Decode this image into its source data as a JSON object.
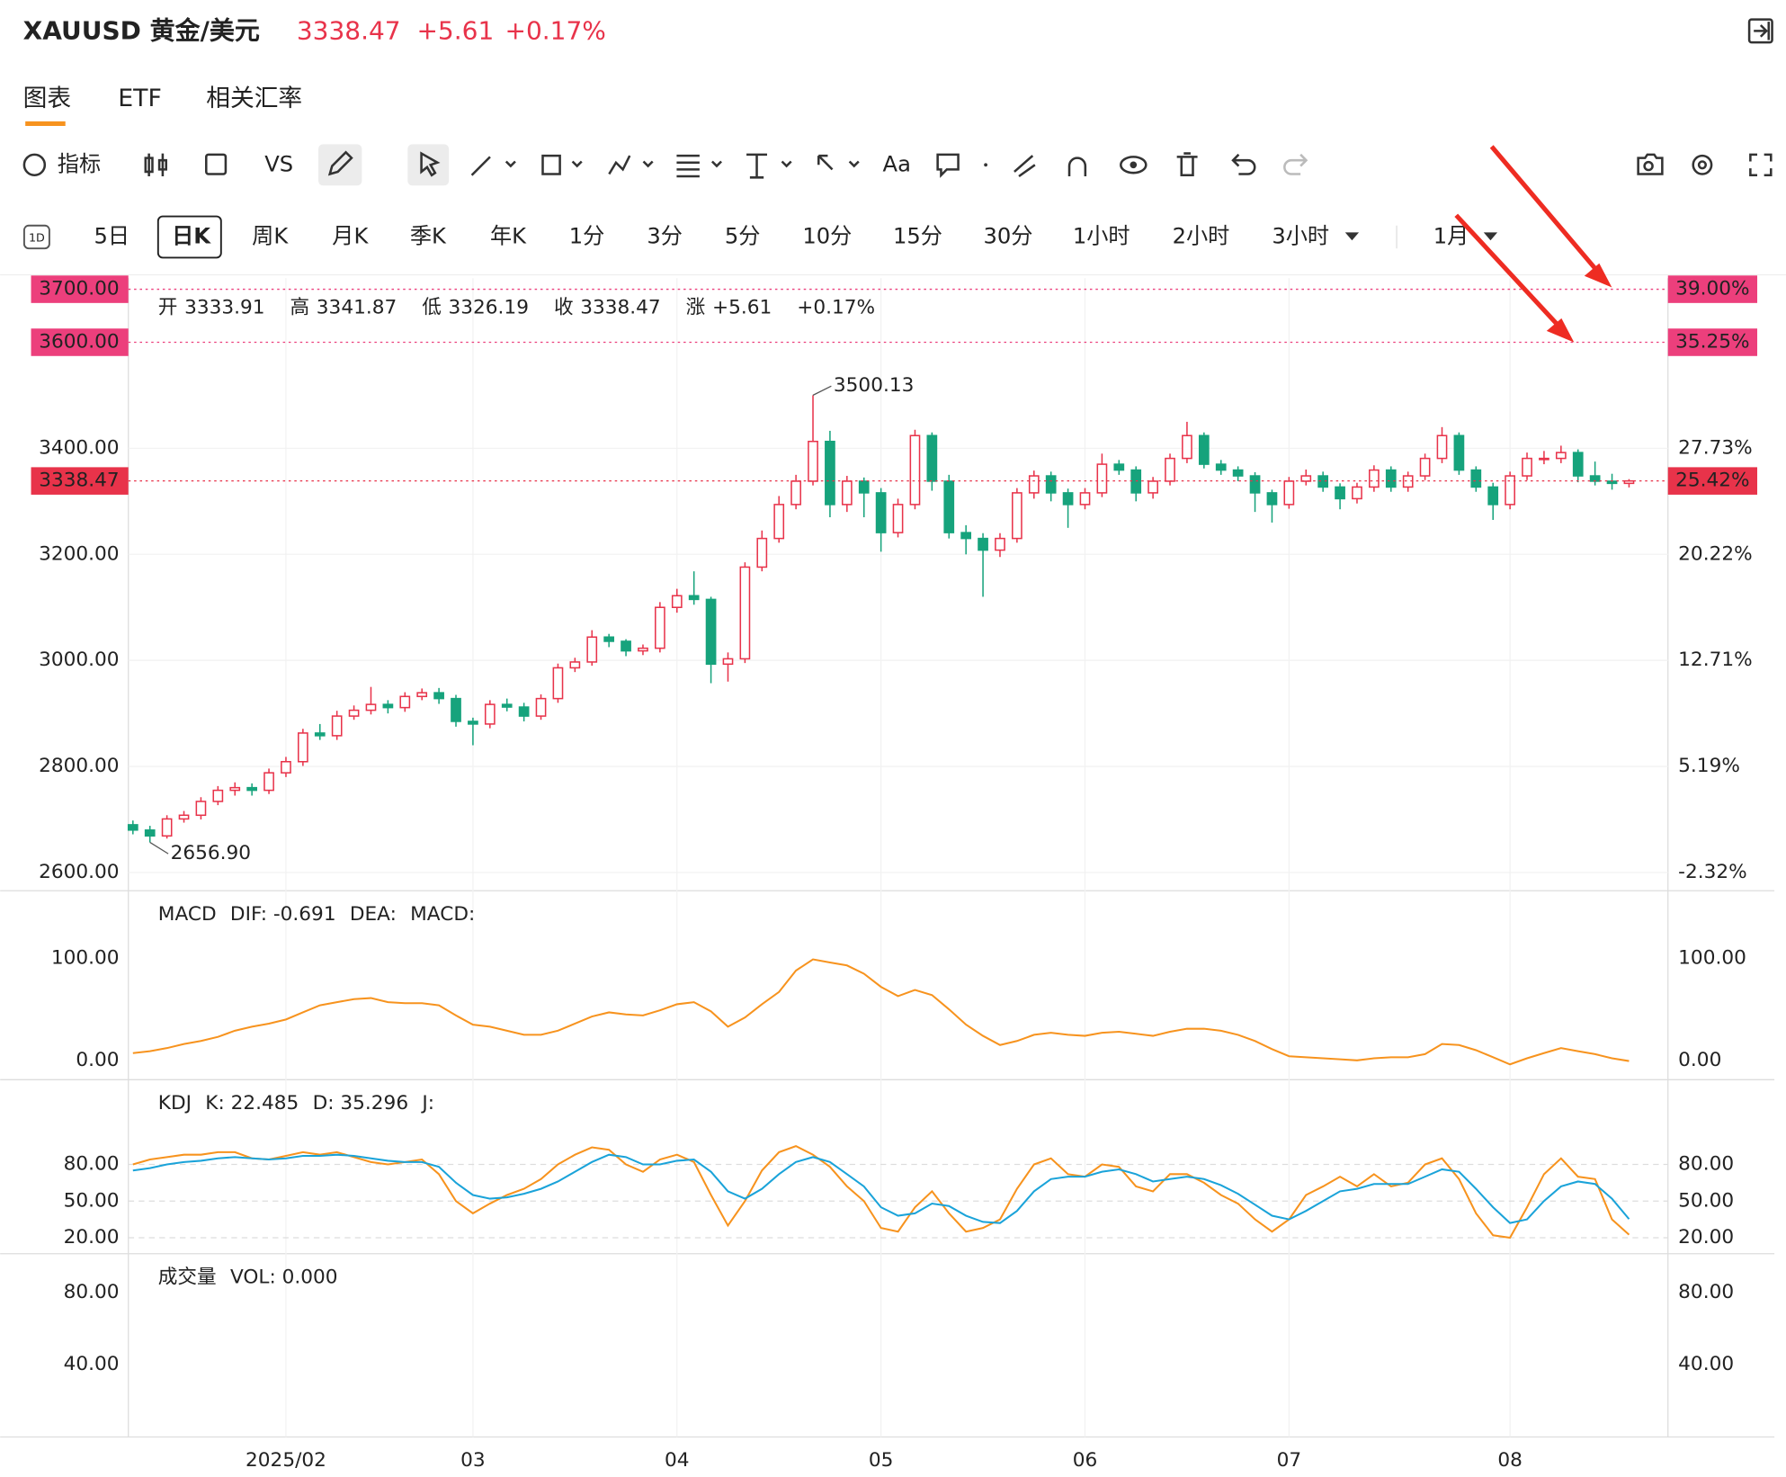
{
  "header": {
    "symbol": "XAUUSD 黄金/美元",
    "price": "3338.47",
    "change": "+5.61",
    "change_pct": "+0.17%"
  },
  "tabs": [
    "图表",
    "ETF",
    "相关汇率"
  ],
  "toolbar": {
    "indicator": "指标",
    "vs": "VS",
    "text": "Aa"
  },
  "period_icon": "1D",
  "periods": [
    "5日",
    "日K",
    "周K",
    "月K",
    "季K",
    "年K",
    "1分",
    "3分",
    "5分",
    "10分",
    "15分",
    "30分",
    "1小时",
    "2小时",
    "3小时",
    "1月"
  ],
  "ohlc_info": [
    {
      "label": "开",
      "value": "3333.91",
      "color": "#e8334a"
    },
    {
      "label": "高",
      "value": "3341.87",
      "color": "#e8334a"
    },
    {
      "label": "低",
      "value": "3326.19",
      "color": "#16a37c"
    },
    {
      "label": "收",
      "value": "3338.47",
      "color": "#e8334a"
    },
    {
      "label": "涨",
      "value": "+5.61",
      "color": "#e8334a"
    },
    {
      "value": "+0.17%",
      "color": "#e8334a"
    }
  ],
  "chart_data": [
    {
      "type": "candlestick",
      "up_color": "#e8334a",
      "down_color": "#16a37c",
      "grid": true,
      "categories": [
        null,
        null,
        null,
        null,
        null,
        null,
        null,
        null,
        null,
        "2025/02",
        null,
        null,
        null,
        null,
        null,
        null,
        null,
        null,
        null,
        null,
        "03",
        null,
        null,
        null,
        null,
        null,
        null,
        null,
        null,
        null,
        null,
        null,
        "04",
        null,
        null,
        null,
        null,
        null,
        null,
        null,
        null,
        null,
        null,
        null,
        "05",
        null,
        null,
        null,
        null,
        null,
        null,
        null,
        null,
        null,
        null,
        null,
        "06",
        null,
        null,
        null,
        null,
        null,
        null,
        null,
        null,
        null,
        null,
        null,
        "07",
        null,
        null,
        null,
        null,
        null,
        null,
        null,
        null,
        null,
        null,
        null,
        null,
        "08",
        null,
        null,
        null,
        null,
        null,
        null,
        null
      ],
      "ohlc": [
        [
          2690,
          2698,
          2672,
          2680
        ],
        [
          2680,
          2688,
          2656.9,
          2669
        ],
        [
          2669,
          2708,
          2664,
          2701
        ],
        [
          2701,
          2716,
          2694,
          2708
        ],
        [
          2708,
          2742,
          2700,
          2734
        ],
        [
          2734,
          2763,
          2727,
          2755
        ],
        [
          2755,
          2770,
          2745,
          2760
        ],
        [
          2760,
          2768,
          2745,
          2755
        ],
        [
          2755,
          2796,
          2748,
          2788
        ],
        [
          2788,
          2818,
          2780,
          2809
        ],
        [
          2809,
          2871,
          2801,
          2863
        ],
        [
          2863,
          2880,
          2850,
          2858
        ],
        [
          2858,
          2905,
          2850,
          2895
        ],
        [
          2895,
          2915,
          2888,
          2906
        ],
        [
          2906,
          2950,
          2898,
          2917
        ],
        [
          2917,
          2925,
          2900,
          2911
        ],
        [
          2911,
          2940,
          2903,
          2932
        ],
        [
          2932,
          2947,
          2925,
          2939
        ],
        [
          2939,
          2948,
          2918,
          2928
        ],
        [
          2928,
          2935,
          2875,
          2885
        ],
        [
          2885,
          2892,
          2840,
          2880
        ],
        [
          2880,
          2925,
          2872,
          2917
        ],
        [
          2917,
          2928,
          2904,
          2912
        ],
        [
          2912,
          2920,
          2885,
          2895
        ],
        [
          2895,
          2936,
          2888,
          2928
        ],
        [
          2928,
          2994,
          2920,
          2986
        ],
        [
          2986,
          3005,
          2978,
          2997
        ],
        [
          2997,
          3057,
          2990,
          3044
        ],
        [
          3044,
          3050,
          3025,
          3036
        ],
        [
          3036,
          3040,
          3008,
          3018
        ],
        [
          3018,
          3030,
          3010,
          3023
        ],
        [
          3023,
          3110,
          3015,
          3100
        ],
        [
          3100,
          3135,
          3090,
          3122
        ],
        [
          3122,
          3168,
          3105,
          3115
        ],
        [
          3115,
          3120,
          2957,
          2993
        ],
        [
          2993,
          3015,
          2960,
          3003
        ],
        [
          3003,
          3185,
          2995,
          3176
        ],
        [
          3176,
          3245,
          3168,
          3230
        ],
        [
          3230,
          3310,
          3222,
          3294
        ],
        [
          3294,
          3350,
          3285,
          3338
        ],
        [
          3338,
          3500.13,
          3330,
          3413
        ],
        [
          3413,
          3433,
          3270,
          3294
        ],
        [
          3294,
          3348,
          3280,
          3338
        ],
        [
          3338,
          3345,
          3270,
          3316
        ],
        [
          3316,
          3325,
          3205,
          3241
        ],
        [
          3241,
          3305,
          3232,
          3294
        ],
        [
          3294,
          3435,
          3285,
          3424
        ],
        [
          3424,
          3430,
          3320,
          3338
        ],
        [
          3338,
          3350,
          3230,
          3241
        ],
        [
          3241,
          3255,
          3200,
          3230
        ],
        [
          3230,
          3240,
          3120,
          3208
        ],
        [
          3208,
          3240,
          3195,
          3230
        ],
        [
          3230,
          3325,
          3222,
          3316
        ],
        [
          3316,
          3358,
          3305,
          3348
        ],
        [
          3348,
          3356,
          3300,
          3316
        ],
        [
          3316,
          3324,
          3250,
          3294
        ],
        [
          3294,
          3325,
          3285,
          3316
        ],
        [
          3316,
          3390,
          3308,
          3370
        ],
        [
          3370,
          3378,
          3350,
          3359
        ],
        [
          3359,
          3366,
          3300,
          3316
        ],
        [
          3316,
          3346,
          3305,
          3338
        ],
        [
          3338,
          3390,
          3330,
          3381
        ],
        [
          3381,
          3450,
          3372,
          3424
        ],
        [
          3424,
          3430,
          3362,
          3370
        ],
        [
          3370,
          3378,
          3350,
          3359
        ],
        [
          3359,
          3366,
          3338,
          3348
        ],
        [
          3348,
          3355,
          3280,
          3316
        ],
        [
          3316,
          3322,
          3260,
          3294
        ],
        [
          3294,
          3346,
          3286,
          3338
        ],
        [
          3338,
          3360,
          3330,
          3348
        ],
        [
          3348,
          3356,
          3318,
          3327
        ],
        [
          3327,
          3334,
          3285,
          3305
        ],
        [
          3305,
          3335,
          3296,
          3327
        ],
        [
          3327,
          3368,
          3318,
          3359
        ],
        [
          3359,
          3366,
          3318,
          3327
        ],
        [
          3327,
          3356,
          3318,
          3348
        ],
        [
          3348,
          3390,
          3340,
          3381
        ],
        [
          3381,
          3440,
          3372,
          3424
        ],
        [
          3424,
          3430,
          3350,
          3359
        ],
        [
          3359,
          3366,
          3318,
          3327
        ],
        [
          3327,
          3335,
          3265,
          3294
        ],
        [
          3294,
          3356,
          3285,
          3348
        ],
        [
          3348,
          3392,
          3340,
          3381
        ],
        [
          3381,
          3395,
          3370,
          3381
        ],
        [
          3381,
          3405,
          3372,
          3392
        ],
        [
          3392,
          3398,
          3336,
          3348
        ],
        [
          3348,
          3375,
          3330,
          3338
        ],
        [
          3338,
          3352,
          3322,
          3333.91
        ],
        [
          3333.91,
          3341.87,
          3326.19,
          3338.47
        ]
      ],
      "ylim": [
        2565.5,
        3720.8
      ],
      "yticks": [
        {
          "value": 2600,
          "label": "2600.00"
        },
        {
          "value": 2800,
          "label": "2800.00"
        },
        {
          "value": 3000,
          "label": "3000.00"
        },
        {
          "value": 3200,
          "label": "3200.00"
        },
        {
          "value": 3400,
          "label": "3400.00"
        }
      ],
      "y2lim": [
        -3.62,
        39.79
      ],
      "y2ticks": [
        {
          "value": -2.32,
          "label": "-2.32%"
        },
        {
          "value": 5.19,
          "label": "5.19%"
        },
        {
          "value": 12.71,
          "label": "12.71%"
        },
        {
          "value": 20.22,
          "label": "20.22%"
        },
        {
          "value": 27.73,
          "label": "27.73%"
        }
      ],
      "price_lines": [
        {
          "value": 3700,
          "label": "3700.00",
          "pct_label": "39.00%",
          "color": "#ec3f7c"
        },
        {
          "value": 3600,
          "label": "3600.00",
          "pct_label": "35.25%",
          "color": "#ec3f7c"
        },
        {
          "value": 3338.47,
          "label": "3338.47",
          "pct_label": "25.42%",
          "color": "#e8334a"
        }
      ],
      "annotations": [
        {
          "value": 3500.13,
          "label": "3500.13"
        },
        {
          "value": 2656.9,
          "label": "2656.90"
        }
      ]
    },
    {
      "type": "line",
      "title": "MACD",
      "grid": false,
      "series": [
        {
          "name": "DIF: -0.691",
          "color": "#f7931e",
          "values": [
            7,
            9,
            12,
            16,
            19,
            23,
            29,
            33,
            36,
            40,
            47,
            54,
            57,
            60,
            61,
            57,
            56,
            56,
            54,
            44,
            35,
            33,
            29,
            25,
            25,
            29,
            36,
            43,
            47,
            45,
            44,
            49,
            55,
            57,
            48,
            33,
            42,
            55,
            67,
            88,
            99,
            96,
            93,
            85,
            72,
            63,
            69,
            64,
            50,
            35,
            24,
            15,
            19,
            25,
            27,
            25,
            24,
            27,
            28,
            26,
            24,
            28,
            31,
            31,
            29,
            25,
            19,
            11,
            4,
            3,
            2,
            1,
            0,
            2,
            3,
            3,
            6,
            16,
            15,
            10,
            3,
            -4,
            2,
            7,
            12,
            9,
            6,
            2,
            -0.691
          ]
        }
      ],
      "legend": [
        {
          "label": "DEA:",
          "color": "#a8dcef"
        },
        {
          "label": "MACD:",
          "color": "#f3c6e8"
        }
      ],
      "ylim": [
        -19,
        164
      ],
      "yticks": [
        {
          "value": 0,
          "label": "0.00"
        },
        {
          "value": 100,
          "label": "100.00"
        }
      ]
    },
    {
      "type": "line",
      "title": "KDJ",
      "grid": true,
      "series": [
        {
          "name": "K: 22.485",
          "color": "#f7931e",
          "values": [
            80,
            84,
            86,
            88,
            88,
            90,
            90,
            85,
            84,
            87,
            90,
            88,
            90,
            86,
            82,
            80,
            82,
            84,
            72,
            50,
            40,
            48,
            55,
            60,
            68,
            80,
            88,
            94,
            92,
            80,
            74,
            84,
            88,
            82,
            55,
            30,
            50,
            75,
            90,
            95,
            88,
            78,
            62,
            50,
            28,
            25,
            45,
            58,
            40,
            25,
            28,
            35,
            60,
            80,
            85,
            72,
            70,
            80,
            78,
            62,
            58,
            72,
            72,
            65,
            55,
            48,
            35,
            25,
            35,
            55,
            62,
            70,
            62,
            72,
            62,
            65,
            80,
            85,
            68,
            40,
            22,
            20,
            45,
            72,
            85,
            70,
            68,
            35,
            22.485
          ]
        },
        {
          "name": "D: 35.296",
          "color": "#1aa3d9",
          "values": [
            75,
            77,
            80,
            82,
            83,
            85,
            86,
            85,
            84,
            85,
            87,
            87,
            88,
            87,
            85,
            83,
            82,
            82,
            78,
            65,
            55,
            52,
            53,
            56,
            60,
            66,
            74,
            82,
            88,
            86,
            80,
            80,
            83,
            84,
            74,
            58,
            52,
            60,
            72,
            82,
            86,
            82,
            72,
            62,
            45,
            38,
            40,
            48,
            46,
            38,
            33,
            32,
            42,
            58,
            68,
            70,
            70,
            74,
            76,
            72,
            66,
            68,
            70,
            68,
            63,
            56,
            47,
            38,
            35,
            42,
            50,
            58,
            60,
            64,
            64,
            64,
            70,
            76,
            74,
            60,
            45,
            32,
            35,
            50,
            62,
            66,
            64,
            52,
            35.296
          ]
        }
      ],
      "legend": [
        {
          "label": "J:",
          "color": "#f3c6e8"
        }
      ],
      "ylim": [
        6.9,
        147.5
      ],
      "yticks": [
        {
          "value": 20,
          "label": "20.00"
        },
        {
          "value": 50,
          "label": "50.00"
        },
        {
          "value": 80,
          "label": "80.00"
        }
      ]
    },
    {
      "type": "bar",
      "title": "成交量",
      "grid": false,
      "legend": [
        {
          "label": "VOL: 0.000",
          "color": "#ee7a72"
        }
      ],
      "ylim": [
        0,
        100.3
      ],
      "yticks": [
        {
          "value": 40,
          "label": "40.00"
        },
        {
          "value": 80,
          "label": "80.00"
        }
      ]
    }
  ]
}
